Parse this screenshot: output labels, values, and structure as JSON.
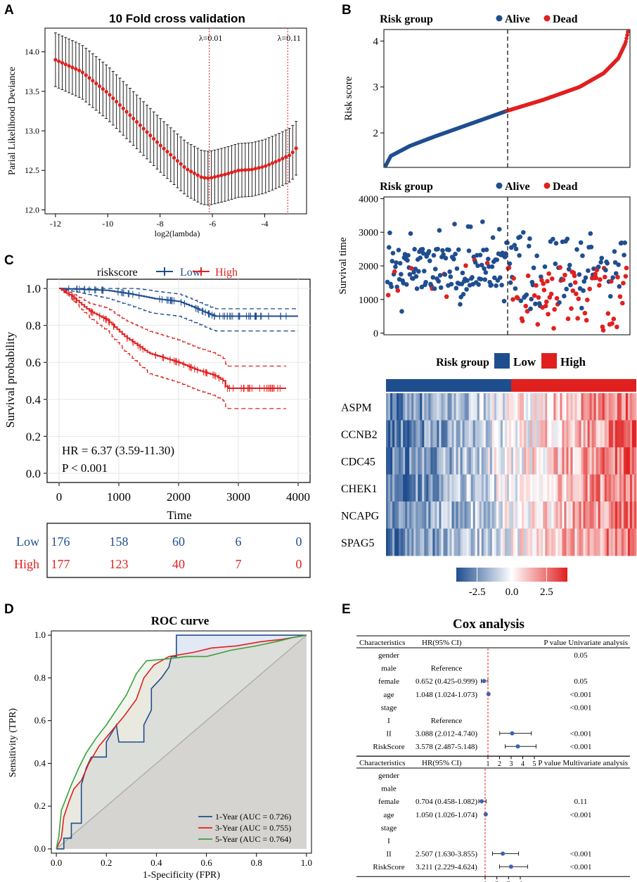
{
  "panels": {
    "A": "A",
    "B": "B",
    "C": "C",
    "D": "D",
    "E": "E"
  },
  "colors": {
    "red": "#e0201f",
    "blue": "#1f4e8f",
    "green": "#3aa03a",
    "gray": "#aaaaaa",
    "heat_low": "#1f4e8f",
    "heat_high": "#e0201f"
  },
  "chart_data": [
    {
      "id": "A",
      "type": "scatter",
      "title": "10 Fold cross validation",
      "xlabel": "log2(lambda)",
      "ylabel": "Parial Likelihood Deviance",
      "xlim": [
        -12.4,
        -2.4
      ],
      "ylim": [
        11.95,
        14.3
      ],
      "xticks": [
        "-12",
        "-10",
        "-8",
        "-6",
        "-4"
      ],
      "xtick_values": [
        -12,
        -10,
        -8,
        -6,
        -4
      ],
      "yticks": [
        "12.0",
        "12.5",
        "13.0",
        "13.5",
        "14.0"
      ],
      "ytick_values": [
        12.0,
        12.5,
        13.0,
        13.5,
        14.0
      ],
      "vlines": [
        {
          "x": -6.12,
          "label": "λ=0.01"
        },
        {
          "x": -3.12,
          "label": "λ=0.11"
        }
      ],
      "curve_knots": [
        [
          -12.0,
          13.9
        ],
        [
          -11.0,
          13.75
        ],
        [
          -10.0,
          13.48
        ],
        [
          -9.0,
          13.15
        ],
        [
          -8.0,
          12.82
        ],
        [
          -7.0,
          12.52
        ],
        [
          -6.4,
          12.41
        ],
        [
          -6.12,
          12.4
        ],
        [
          -5.5,
          12.45
        ],
        [
          -5.0,
          12.5
        ],
        [
          -4.5,
          12.51
        ],
        [
          -4.0,
          12.55
        ],
        [
          -3.5,
          12.62
        ],
        [
          -3.0,
          12.7
        ],
        [
          -2.8,
          12.78
        ]
      ],
      "error_band": 0.34
    },
    {
      "id": "B1",
      "type": "scatter",
      "title": "Risk group",
      "legend": [
        "Alive",
        "Dead"
      ],
      "ylabel": "Risk score",
      "ylim": [
        1.25,
        4.25
      ],
      "yticks": [
        "2",
        "3",
        "4"
      ],
      "ytick_values": [
        2,
        3,
        4
      ],
      "n_patients": 353,
      "cutoff_index": 176,
      "quantiles": [
        [
          0.0,
          1.3
        ],
        [
          0.02,
          1.5
        ],
        [
          0.1,
          1.72
        ],
        [
          0.2,
          1.92
        ],
        [
          0.35,
          2.2
        ],
        [
          0.5,
          2.48
        ],
        [
          0.65,
          2.72
        ],
        [
          0.8,
          3.0
        ],
        [
          0.9,
          3.3
        ],
        [
          0.96,
          3.62
        ],
        [
          0.99,
          3.95
        ],
        [
          1.0,
          4.2
        ]
      ]
    },
    {
      "id": "B2",
      "type": "scatter",
      "title": "Risk group",
      "legend": [
        "Alive",
        "Dead"
      ],
      "ylabel": "Survival time",
      "ylim": [
        -50,
        4050
      ],
      "yticks": [
        "0",
        "1000",
        "2000",
        "3000",
        "4000"
      ],
      "ytick_values": [
        0,
        1000,
        2000,
        3000,
        4000
      ]
    },
    {
      "id": "B3",
      "type": "heatmap",
      "title": "Risk group",
      "legend": [
        "Low",
        "High"
      ],
      "genes": [
        "ASPM",
        "CCNB2",
        "CDC45",
        "CHEK1",
        "NCAPG",
        "SPAG5"
      ],
      "colorbar_ticks": [
        "-2.5",
        "0.0",
        "2.5"
      ],
      "colorbar_values": [
        -2.5,
        0.0,
        2.5
      ],
      "color_range": [
        -4,
        4
      ]
    },
    {
      "id": "C",
      "type": "line",
      "legend_title": "riskscore",
      "legend": [
        "Low",
        "High"
      ],
      "xlabel": "Time",
      "ylabel": "Survival probability",
      "xlim": [
        -200,
        4200
      ],
      "ylim": [
        -0.05,
        1.05
      ],
      "xticks": [
        "0",
        "1000",
        "2000",
        "3000",
        "4000"
      ],
      "xtick_values": [
        0,
        1000,
        2000,
        3000,
        4000
      ],
      "yticks": [
        "0.0",
        "0.2",
        "0.4",
        "0.6",
        "0.8",
        "1.0"
      ],
      "ytick_values": [
        0,
        0.2,
        0.4,
        0.6,
        0.8,
        1.0
      ],
      "annotation_hr": "HR = 6.37 (3.59-11.30)",
      "annotation_p": "P < 0.001",
      "series": [
        {
          "name": "Low",
          "knots": [
            [
              0,
              1.0
            ],
            [
              400,
              0.995
            ],
            [
              800,
              0.99
            ],
            [
              1200,
              0.97
            ],
            [
              1600,
              0.945
            ],
            [
              2000,
              0.93
            ],
            [
              2200,
              0.905
            ],
            [
              2450,
              0.87
            ],
            [
              2600,
              0.85
            ],
            [
              3000,
              0.85
            ],
            [
              4000,
              0.85
            ]
          ],
          "lower": -0.08,
          "upper": 0.04
        },
        {
          "name": "High",
          "knots": [
            [
              0,
              1.0
            ],
            [
              200,
              0.96
            ],
            [
              500,
              0.88
            ],
            [
              800,
              0.83
            ],
            [
              1100,
              0.74
            ],
            [
              1500,
              0.65
            ],
            [
              1800,
              0.62
            ],
            [
              2000,
              0.6
            ],
            [
              2300,
              0.56
            ],
            [
              2600,
              0.53
            ],
            [
              2750,
              0.5
            ],
            [
              2800,
              0.46
            ],
            [
              3800,
              0.46
            ]
          ],
          "lower": -0.11,
          "upper": 0.12
        }
      ],
      "risk_table": {
        "rows": [
          {
            "label": "Low",
            "values": [
              "176",
              "158",
              "60",
              "6",
              "0"
            ]
          },
          {
            "label": "High",
            "values": [
              "177",
              "123",
              "40",
              "7",
              "0"
            ]
          }
        ]
      }
    },
    {
      "id": "D",
      "type": "line",
      "title": "ROC curve",
      "xlabel": "1-Specificity (FPR)",
      "ylabel": "Sensitivity (TPR)",
      "xlim": [
        -0.02,
        1.02
      ],
      "ylim": [
        -0.02,
        1.02
      ],
      "xticks": [
        "0.0",
        "0.2",
        "0.4",
        "0.6",
        "0.8",
        "1.0"
      ],
      "yticks": [
        "0.0",
        "0.2",
        "0.4",
        "0.6",
        "0.8",
        "1.0"
      ],
      "tick_values": [
        0,
        0.2,
        0.4,
        0.6,
        0.8,
        1.0
      ],
      "series": [
        {
          "name": "1-Year (AUC = 0.726)",
          "points": [
            [
              0,
              0
            ],
            [
              0.03,
              0
            ],
            [
              0.03,
              0.05
            ],
            [
              0.06,
              0.05
            ],
            [
              0.06,
              0.12
            ],
            [
              0.1,
              0.12
            ],
            [
              0.1,
              0.3
            ],
            [
              0.12,
              0.38
            ],
            [
              0.14,
              0.43
            ],
            [
              0.2,
              0.43
            ],
            [
              0.2,
              0.5
            ],
            [
              0.24,
              0.58
            ],
            [
              0.25,
              0.5
            ],
            [
              0.35,
              0.5
            ],
            [
              0.35,
              0.58
            ],
            [
              0.38,
              0.65
            ],
            [
              0.38,
              0.75
            ],
            [
              0.42,
              0.8
            ],
            [
              0.45,
              0.85
            ],
            [
              0.46,
              0.9
            ],
            [
              0.48,
              0.9
            ],
            [
              0.48,
              1.0
            ],
            [
              1.0,
              1.0
            ]
          ]
        },
        {
          "name": "3-Year (AUC = 0.755)",
          "points": [
            [
              0,
              0
            ],
            [
              0.02,
              0.05
            ],
            [
              0.03,
              0.15
            ],
            [
              0.05,
              0.22
            ],
            [
              0.07,
              0.28
            ],
            [
              0.1,
              0.32
            ],
            [
              0.13,
              0.4
            ],
            [
              0.17,
              0.48
            ],
            [
              0.22,
              0.55
            ],
            [
              0.27,
              0.62
            ],
            [
              0.32,
              0.7
            ],
            [
              0.35,
              0.8
            ],
            [
              0.39,
              0.86
            ],
            [
              0.45,
              0.9
            ],
            [
              0.55,
              0.92
            ],
            [
              0.62,
              0.94
            ],
            [
              0.72,
              0.95
            ],
            [
              0.82,
              0.97
            ],
            [
              0.9,
              0.98
            ],
            [
              1.0,
              1.0
            ]
          ]
        },
        {
          "name": "5-Year (AUC = 0.764)",
          "points": [
            [
              0,
              0
            ],
            [
              0.01,
              0.06
            ],
            [
              0.02,
              0.18
            ],
            [
              0.04,
              0.24
            ],
            [
              0.06,
              0.3
            ],
            [
              0.09,
              0.38
            ],
            [
              0.12,
              0.45
            ],
            [
              0.16,
              0.52
            ],
            [
              0.2,
              0.58
            ],
            [
              0.24,
              0.65
            ],
            [
              0.28,
              0.72
            ],
            [
              0.32,
              0.82
            ],
            [
              0.36,
              0.88
            ],
            [
              0.45,
              0.89
            ],
            [
              0.52,
              0.9
            ],
            [
              0.6,
              0.9
            ],
            [
              0.7,
              0.93
            ],
            [
              0.8,
              0.95
            ],
            [
              0.88,
              0.97
            ],
            [
              0.95,
              0.99
            ],
            [
              1.0,
              1.0
            ]
          ]
        }
      ]
    },
    {
      "id": "E",
      "type": "table",
      "title": "Cox analysis",
      "univariate": {
        "header": [
          "Characteristics",
          "HR(95% CI)",
          "P value Univariate analysis"
        ],
        "rows": [
          {
            "char": "gender",
            "hr": "",
            "p": "0.05",
            "est": null,
            "lo": null,
            "hi": null
          },
          {
            "char": "male",
            "hr": "Reference",
            "p": "",
            "est": null,
            "lo": null,
            "hi": null
          },
          {
            "char": "female",
            "hr": "0.652 (0.425-0.999)",
            "p": "0.05",
            "est": 0.652,
            "lo": 0.425,
            "hi": 0.999
          },
          {
            "char": "age",
            "hr": "1.048 (1.024-1.073)",
            "p": "<0.001",
            "est": 1.048,
            "lo": 1.024,
            "hi": 1.073
          },
          {
            "char": "stage",
            "hr": "",
            "p": "<0.001",
            "est": null,
            "lo": null,
            "hi": null
          },
          {
            "char": "I",
            "hr": "Reference",
            "p": "",
            "est": null,
            "lo": null,
            "hi": null
          },
          {
            "char": "II",
            "hr": "3.088 (2.012-4.740)",
            "p": "<0.001",
            "est": 3.088,
            "lo": 2.012,
            "hi": 4.74
          },
          {
            "char": "RiskScore",
            "hr": "3.578 (2.487-5.148)",
            "p": "<0.001",
            "est": 3.578,
            "lo": 2.487,
            "hi": 5.148
          }
        ],
        "axis_ticks": [
          "1",
          "2",
          "3",
          "4",
          "5"
        ],
        "axis_values": [
          1,
          2,
          3,
          4,
          5
        ]
      },
      "multivariate": {
        "header": [
          "Characteristics",
          "HR(95% CI)",
          "P value Multivariate analysis"
        ],
        "rows": [
          {
            "char": "gender",
            "hr": "",
            "p": "",
            "est": null,
            "lo": null,
            "hi": null
          },
          {
            "char": "male",
            "hr": "",
            "p": "",
            "est": null,
            "lo": null,
            "hi": null
          },
          {
            "char": "female",
            "hr": "0.704 (0.458-1.082)",
            "p": "0.11",
            "est": 0.704,
            "lo": 0.458,
            "hi": 1.082
          },
          {
            "char": "age",
            "hr": "1.050 (1.026-1.074)",
            "p": "<0.001",
            "est": 1.05,
            "lo": 1.026,
            "hi": 1.074
          },
          {
            "char": "stage",
            "hr": "",
            "p": "",
            "est": null,
            "lo": null,
            "hi": null
          },
          {
            "char": "I",
            "hr": "",
            "p": "",
            "est": null,
            "lo": null,
            "hi": null
          },
          {
            "char": "II",
            "hr": "2.507 (1.630-3.855)",
            "p": "<0.001",
            "est": 2.507,
            "lo": 1.63,
            "hi": 3.855
          },
          {
            "char": "RiskScore",
            "hr": "3.211 (2.229-4.624)",
            "p": "<0.001",
            "est": 3.211,
            "lo": 2.229,
            "hi": 4.624
          }
        ],
        "axis_ticks": [
          "1",
          "2",
          "3",
          "4"
        ],
        "axis_values": [
          1,
          2,
          3,
          4
        ]
      }
    }
  ]
}
